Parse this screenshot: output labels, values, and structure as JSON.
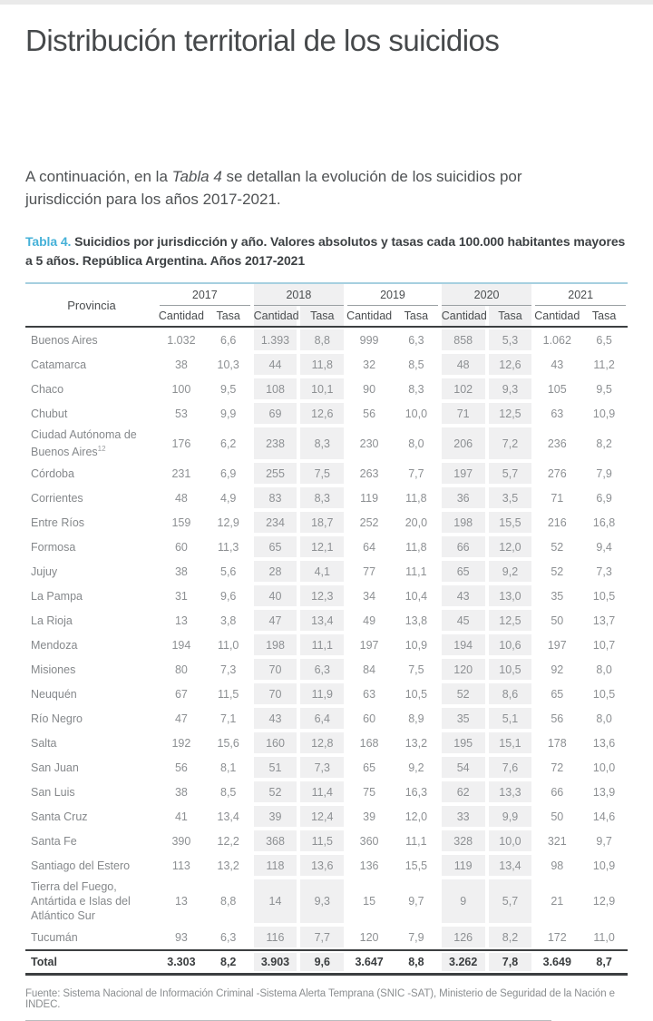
{
  "page": {
    "title": "Distribución territorial de los suicidios",
    "intro": {
      "before": "A continuación, en la ",
      "italic": "Tabla 4",
      "after": " se detallan la evolución de los suicidios por jurisdicción para los años 2017-2021."
    },
    "caption": {
      "label": "Tabla 4.",
      "text": " Suicidios por jurisdicción y año. Valores absolutos y tasas cada 100.000 habitantes mayores a 5 años. República Argentina. Años 2017-2021"
    },
    "source": "Fuente: Sistema Nacional de Información Criminal -Sistema Alerta Temprana (SNIC -SAT), Ministerio de Seguridad de la Nación e INDEC."
  },
  "colors": {
    "accent_blue": "#45b1d8",
    "table_top_border": "#a6d0e0",
    "shaded_column": "#f0f0f1",
    "dark_rule": "#3c3f41",
    "top_strip": "#eaeaea"
  },
  "table": {
    "province_header": "Provincia",
    "years": [
      "2017",
      "2018",
      "2019",
      "2020",
      "2021"
    ],
    "subheaders": [
      "Cantidad",
      "Tasa"
    ],
    "shaded_years": [
      "2018",
      "2020"
    ],
    "rows": [
      {
        "provincia": "Buenos Aires",
        "values": [
          "1.032",
          "6,6",
          "1.393",
          "8,8",
          "999",
          "6,3",
          "858",
          "5,3",
          "1.062",
          "6,5"
        ]
      },
      {
        "provincia": "Catamarca",
        "values": [
          "38",
          "10,3",
          "44",
          "11,8",
          "32",
          "8,5",
          "48",
          "12,6",
          "43",
          "11,2"
        ]
      },
      {
        "provincia": "Chaco",
        "values": [
          "100",
          "9,5",
          "108",
          "10,1",
          "90",
          "8,3",
          "102",
          "9,3",
          "105",
          "9,5"
        ]
      },
      {
        "provincia": "Chubut",
        "values": [
          "53",
          "9,9",
          "69",
          "12,6",
          "56",
          "10,0",
          "71",
          "12,5",
          "63",
          "10,9"
        ]
      },
      {
        "provincia": "Ciudad Autónoma de Buenos Aires",
        "superscript": "12",
        "values": [
          "176",
          "6,2",
          "238",
          "8,3",
          "230",
          "8,0",
          "206",
          "7,2",
          "236",
          "8,2"
        ]
      },
      {
        "provincia": "Córdoba",
        "values": [
          "231",
          "6,9",
          "255",
          "7,5",
          "263",
          "7,7",
          "197",
          "5,7",
          "276",
          "7,9"
        ]
      },
      {
        "provincia": "Corrientes",
        "values": [
          "48",
          "4,9",
          "83",
          "8,3",
          "119",
          "11,8",
          "36",
          "3,5",
          "71",
          "6,9"
        ]
      },
      {
        "provincia": "Entre Ríos",
        "values": [
          "159",
          "12,9",
          "234",
          "18,7",
          "252",
          "20,0",
          "198",
          "15,5",
          "216",
          "16,8"
        ]
      },
      {
        "provincia": "Formosa",
        "values": [
          "60",
          "11,3",
          "65",
          "12,1",
          "64",
          "11,8",
          "66",
          "12,0",
          "52",
          "9,4"
        ]
      },
      {
        "provincia": "Jujuy",
        "values": [
          "38",
          "5,6",
          "28",
          "4,1",
          "77",
          "11,1",
          "65",
          "9,2",
          "52",
          "7,3"
        ]
      },
      {
        "provincia": "La Pampa",
        "values": [
          "31",
          "9,6",
          "40",
          "12,3",
          "34",
          "10,4",
          "43",
          "13,0",
          "35",
          "10,5"
        ]
      },
      {
        "provincia": "La Rioja",
        "values": [
          "13",
          "3,8",
          "47",
          "13,4",
          "49",
          "13,8",
          "45",
          "12,5",
          "50",
          "13,7"
        ]
      },
      {
        "provincia": "Mendoza",
        "values": [
          "194",
          "11,0",
          "198",
          "11,1",
          "197",
          "10,9",
          "194",
          "10,6",
          "197",
          "10,7"
        ]
      },
      {
        "provincia": "Misiones",
        "values": [
          "80",
          "7,3",
          "70",
          "6,3",
          "84",
          "7,5",
          "120",
          "10,5",
          "92",
          "8,0"
        ]
      },
      {
        "provincia": "Neuquén",
        "values": [
          "67",
          "11,5",
          "70",
          "11,9",
          "63",
          "10,5",
          "52",
          "8,6",
          "65",
          "10,5"
        ]
      },
      {
        "provincia": "Río Negro",
        "values": [
          "47",
          "7,1",
          "43",
          "6,4",
          "60",
          "8,9",
          "35",
          "5,1",
          "56",
          "8,0"
        ]
      },
      {
        "provincia": "Salta",
        "values": [
          "192",
          "15,6",
          "160",
          "12,8",
          "168",
          "13,2",
          "195",
          "15,1",
          "178",
          "13,6"
        ]
      },
      {
        "provincia": "San Juan",
        "values": [
          "56",
          "8,1",
          "51",
          "7,3",
          "65",
          "9,2",
          "54",
          "7,6",
          "72",
          "10,0"
        ]
      },
      {
        "provincia": "San Luis",
        "values": [
          "38",
          "8,5",
          "52",
          "11,4",
          "75",
          "16,3",
          "62",
          "13,3",
          "66",
          "13,9"
        ]
      },
      {
        "provincia": "Santa Cruz",
        "values": [
          "41",
          "13,4",
          "39",
          "12,4",
          "39",
          "12,0",
          "33",
          "9,9",
          "50",
          "14,6"
        ]
      },
      {
        "provincia": "Santa Fe",
        "values": [
          "390",
          "12,2",
          "368",
          "11,5",
          "360",
          "11,1",
          "328",
          "10,0",
          "321",
          "9,7"
        ]
      },
      {
        "provincia": "Santiago del Estero",
        "values": [
          "113",
          "13,2",
          "118",
          "13,6",
          "136",
          "15,5",
          "119",
          "13,4",
          "98",
          "10,9"
        ]
      },
      {
        "provincia": "Tierra del Fuego, Antártida e Islas del Atlántico Sur",
        "values": [
          "13",
          "8,8",
          "14",
          "9,3",
          "15",
          "9,7",
          "9",
          "5,7",
          "21",
          "12,9"
        ]
      },
      {
        "provincia": "Tucumán",
        "values": [
          "93",
          "6,3",
          "116",
          "7,7",
          "120",
          "7,9",
          "126",
          "8,2",
          "172",
          "11,0"
        ]
      }
    ],
    "total": {
      "label": "Total",
      "values": [
        "3.303",
        "8,2",
        "3.903",
        "9,6",
        "3.647",
        "8,8",
        "3.262",
        "7,8",
        "3.649",
        "8,7"
      ]
    }
  }
}
